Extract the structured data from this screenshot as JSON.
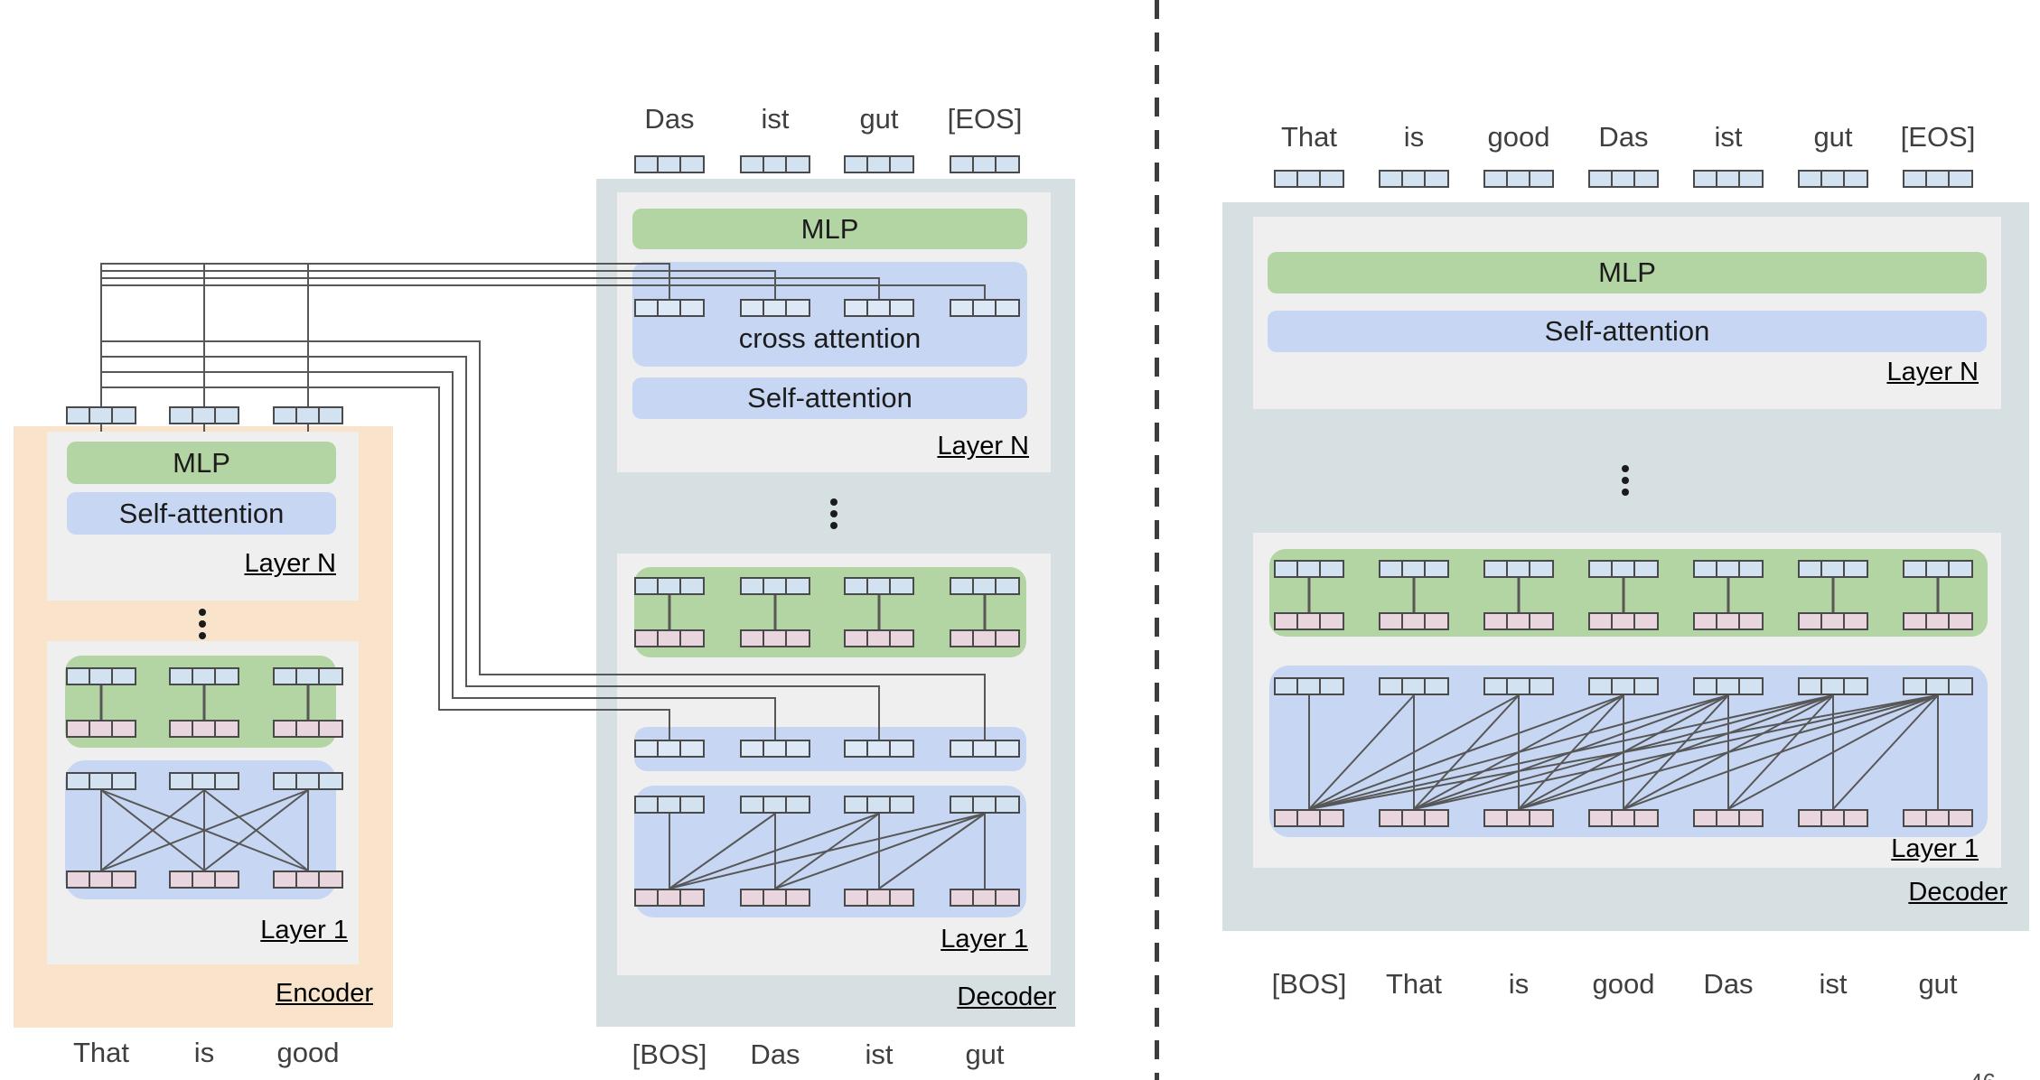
{
  "page": {
    "number_partial": "46"
  },
  "colors": {
    "encoder_bg": "#F9E4CB",
    "decoder_bg": "#D6E0E3",
    "layer_box_bg": "#EFEFEF",
    "mlp_green": "#B3D4A3",
    "attention_blue": "#C7D7F3",
    "token_blue": "#D3E2F1",
    "cross_token_blue": "#DCE8F5",
    "token_pink": "#E9D5DD",
    "line": "#575757",
    "token_border": "#4A4A4A",
    "word_text": "#3F3F3F",
    "divider": "#3C3C3C"
  },
  "encoder": {
    "panel_label": "Encoder",
    "input_tokens": [
      "That",
      "is",
      "good"
    ],
    "mlp_label": "MLP",
    "self_attention_label": "Self-attention",
    "layer_n_label": "Layer N",
    "layer_1_label": "Layer 1"
  },
  "decoder": {
    "panel_label": "Decoder",
    "output_tokens": [
      "Das",
      "ist",
      "gut",
      "[EOS]"
    ],
    "input_tokens": [
      "[BOS]",
      "Das",
      "ist",
      "gut"
    ],
    "mlp_label": "MLP",
    "cross_attention_label": "cross attention",
    "self_attention_label": "Self-attention",
    "layer_n_label": "Layer N",
    "layer_1_label": "Layer 1"
  },
  "decoder_only": {
    "panel_label": "Decoder",
    "output_tokens": [
      "That",
      "is",
      "good",
      "Das",
      "ist",
      "gut",
      "[EOS]"
    ],
    "input_tokens": [
      "[BOS]",
      "That",
      "is",
      "good",
      "Das",
      "ist",
      "gut"
    ],
    "mlp_label": "MLP",
    "self_attention_label": "Self-attention",
    "layer_n_label": "Layer N",
    "layer_1_label": "Layer 1"
  }
}
